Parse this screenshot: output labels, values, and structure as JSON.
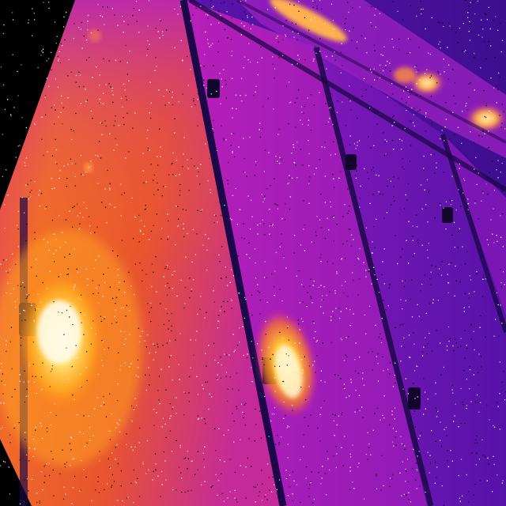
{
  "image": {
    "kind": "thermal-infrared-photo",
    "subject": "solar-panel-array",
    "palette": "ironbow",
    "colors": {
      "background": "#000000",
      "cold": "#2a0a6e",
      "cool": "#6a16b8",
      "mid": "#b01fbf",
      "warm": "#e0357a",
      "hot": "#ff7a18",
      "hotter": "#ffb020",
      "hottest": "#fff6c8",
      "gap": "#1a0640"
    },
    "hotspots": [
      {
        "name": "hotspot-left-panel",
        "intensity": 1.0
      },
      {
        "name": "hotspot-center-panel",
        "intensity": 0.85
      },
      {
        "name": "hotspot-top-right-edge",
        "intensity": 0.7
      }
    ],
    "noise": "salt-and-pepper"
  }
}
